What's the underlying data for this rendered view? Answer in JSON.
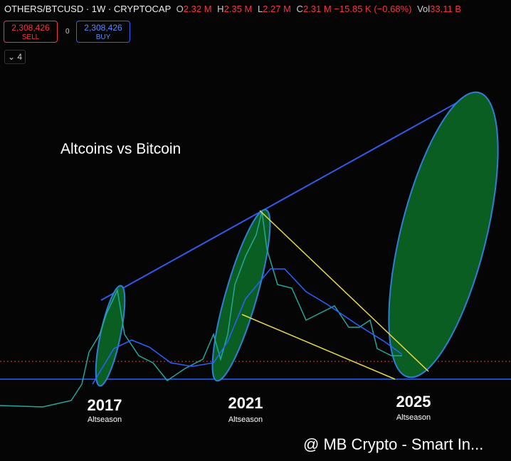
{
  "header": {
    "symbol": "OTHERS/BTCUSD · 1W · CRYPTOCAP",
    "ohlc": [
      {
        "key": "O",
        "value": "2.32 M"
      },
      {
        "key": "H",
        "value": "2.35 M"
      },
      {
        "key": "L",
        "value": "2.27 M"
      },
      {
        "key": "C",
        "value": "2.31 M"
      }
    ],
    "change": "−15.85 K (−0.68%)",
    "volume_key": "Vol",
    "volume": "33.11 B"
  },
  "trade": {
    "sell_price": "2,308,426",
    "sell_label": "SELL",
    "spread": "0",
    "buy_price": "2,308,426",
    "buy_label": "BUY"
  },
  "indicators_count": "4",
  "annotations": {
    "title": "Altcoins vs Bitcoin",
    "seasons": [
      {
        "year": "2017",
        "label": "Altseason"
      },
      {
        "year": "2021",
        "label": "Altseason"
      },
      {
        "year": "2025",
        "label": "Altseason"
      }
    ]
  },
  "watermark": "@ MB Crypto - Smart In..."
}
